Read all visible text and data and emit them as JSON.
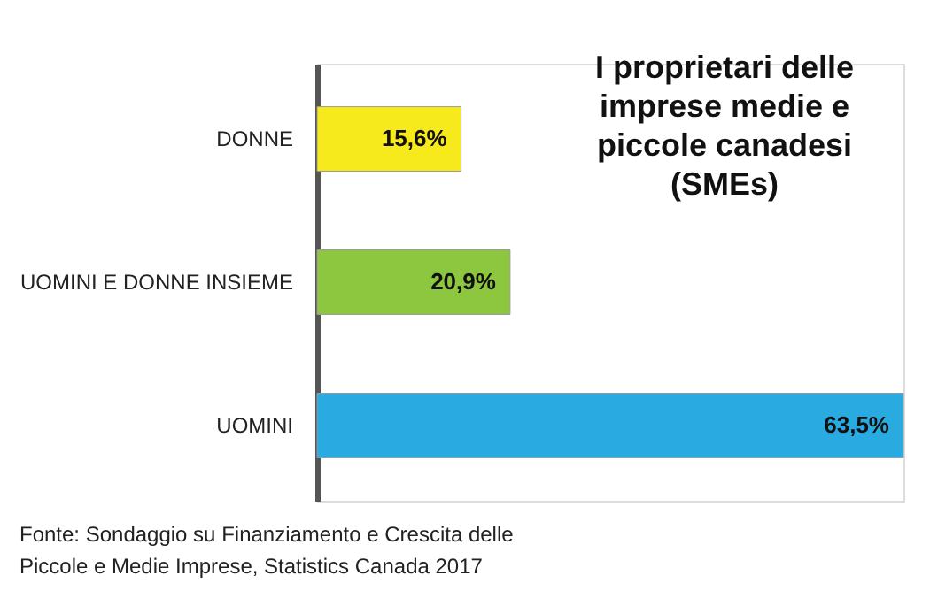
{
  "chart_data": {
    "type": "bar",
    "orientation": "horizontal",
    "title": "I proprietari delle\nimprese medie e\npiccole canadesi\n(SMEs)",
    "categories": [
      "DONNE",
      "UOMINI E DONNE INSIEME",
      "UOMINI"
    ],
    "values": [
      15.6,
      20.9,
      63.5
    ],
    "colors": [
      "#f6ea1c",
      "#8dc63f",
      "#29abe2"
    ],
    "value_labels": [
      "15,6%",
      "20,9%",
      "63,5%"
    ],
    "annotations": [
      "Fonte: Sondaggio su Finanziamento e Crescita delle\nPiccole e Medie Imprese, Statistics Canada 2017"
    ],
    "grid": false,
    "legend": false,
    "tick_labels": "y"
  }
}
